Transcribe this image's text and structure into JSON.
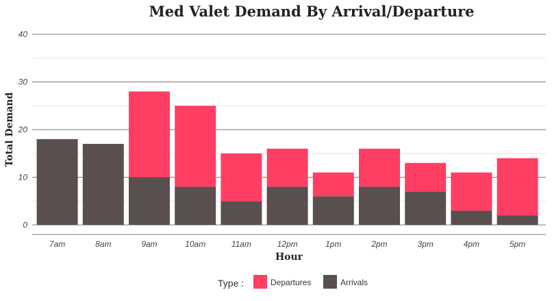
{
  "chart_data": {
    "type": "bar",
    "stacked": true,
    "title": "Med Valet Demand By Arrival/Departure",
    "xlabel": "Hour",
    "ylabel": "Total Demand",
    "categories": [
      "7am",
      "8am",
      "9am",
      "10am",
      "11am",
      "12pm",
      "1pm",
      "2pm",
      "3pm",
      "4pm",
      "5pm"
    ],
    "series": [
      {
        "name": "Arrivals",
        "color": "#5a4f4f",
        "values": [
          18,
          17,
          10,
          8,
          5,
          8,
          6,
          8,
          7,
          3,
          2
        ]
      },
      {
        "name": "Departures",
        "color": "#ff3e63",
        "values": [
          0,
          0,
          18,
          17,
          10,
          8,
          5,
          8,
          6,
          8,
          12
        ]
      }
    ],
    "ylim": [
      0,
      40
    ],
    "yticks": [
      0,
      10,
      20,
      30,
      40
    ],
    "grid": true,
    "legend": {
      "title": "Type :",
      "placement": "bottom",
      "order": [
        "Departures",
        "Arrivals"
      ]
    }
  }
}
